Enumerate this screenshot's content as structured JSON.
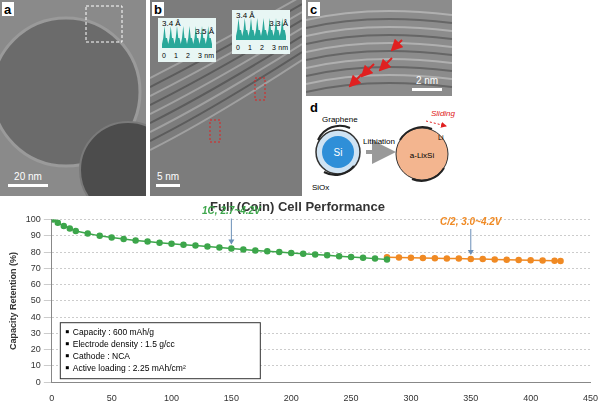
{
  "panels": [
    {
      "label": "a",
      "scale_bar": "20 nm"
    },
    {
      "label": "b",
      "scale_bar": "5 nm",
      "insets": [
        {
          "spacings": [
            "3.4 Å",
            "3.5 Å"
          ],
          "axis_ticks": [
            0,
            1,
            2,
            3
          ],
          "axis_unit": "nm"
        },
        {
          "spacings": [
            "3.4 Å",
            "3.3 Å"
          ],
          "axis_ticks": [
            0,
            1,
            2,
            3
          ],
          "axis_unit": "nm"
        }
      ]
    },
    {
      "label": "c",
      "scale_bar": "2 nm"
    },
    {
      "label": "d",
      "texts": {
        "graphene": "Graphene",
        "si": "Si",
        "siox": "SiOx",
        "lithiation": "Lithiation",
        "sliding": "Sliding",
        "li": "Li",
        "alixsi": "a-LixSi"
      }
    }
  ],
  "chart_data": {
    "type": "line",
    "title": "Full (Coin) Cell Performance",
    "y_label": "Capacity Retention (%)",
    "xlim": [
      0,
      450
    ],
    "xticks": [
      0,
      50,
      100,
      150,
      200,
      250,
      300,
      350,
      400,
      450
    ],
    "ylim": [
      0,
      100
    ],
    "yticks": [
      0,
      10,
      20,
      30,
      40,
      50,
      60,
      70,
      80,
      90,
      100
    ],
    "grid": true,
    "marker": "circle",
    "series": [
      {
        "name": "1C, 2.7~4.2V",
        "color": "#3da64b",
        "x": [
          1,
          5,
          10,
          15,
          20,
          30,
          40,
          50,
          60,
          70,
          80,
          90,
          100,
          110,
          120,
          130,
          140,
          150,
          160,
          170,
          180,
          190,
          200,
          210,
          220,
          230,
          240,
          250,
          260,
          270,
          280
        ],
        "values": [
          100,
          98,
          96,
          94.5,
          93,
          91.5,
          90,
          89,
          88,
          87.2,
          86.5,
          85.8,
          85.2,
          84.6,
          84,
          83.4,
          82.8,
          82.2,
          81.6,
          81,
          80.5,
          80,
          79.5,
          79,
          78.5,
          78,
          77.5,
          77,
          76.5,
          76,
          75.5
        ]
      },
      {
        "name": "C/2, 3.0~4.2V",
        "color": "#f08a24",
        "x": [
          280,
          290,
          300,
          310,
          320,
          330,
          340,
          350,
          360,
          370,
          380,
          390,
          400,
          410,
          420,
          425
        ],
        "values": [
          76.8,
          76.7,
          76.5,
          76.4,
          76.2,
          76.1,
          76,
          75.8,
          75.7,
          75.5,
          75.3,
          75.2,
          75,
          74.9,
          74.7,
          74.6
        ]
      }
    ],
    "info_box": [
      "Capacity : 600 mAh/g",
      "Electrode density : 1.5 g/cc",
      "Cathode : NCA",
      "Active loading : 2.25 mAh/cm²"
    ]
  }
}
